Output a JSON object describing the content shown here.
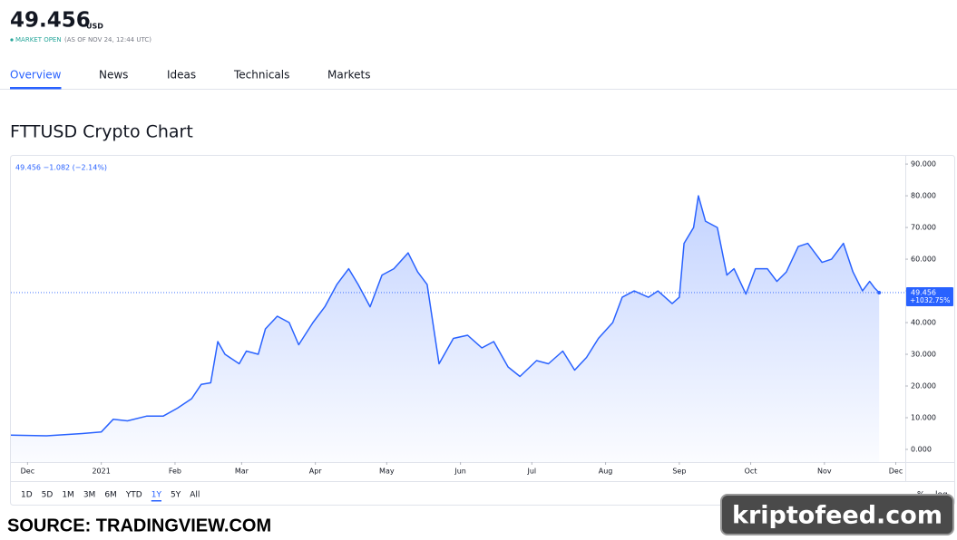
{
  "header": {
    "price": "49.456",
    "currency": "USD",
    "status": "MARKET OPEN",
    "as_of": "(AS OF NOV 24, 12:44 UTC)"
  },
  "tabs": [
    "Overview",
    "News",
    "Ideas",
    "Technicals",
    "Markets"
  ],
  "active_tab": 0,
  "section_title": "FTTUSD Crypto Chart",
  "chart_data": {
    "type": "line",
    "legend_text": "49.456 −1.082 (−2.14%)",
    "x": [
      0,
      15,
      30,
      38,
      43,
      49,
      57,
      64,
      70,
      76,
      80,
      84,
      87,
      90,
      96,
      99,
      104,
      107,
      112,
      117,
      121,
      127,
      132,
      137,
      142,
      146,
      151,
      156,
      161,
      167,
      171,
      175,
      180,
      186,
      192,
      198,
      203,
      209,
      214,
      221,
      226,
      232,
      237,
      242,
      247,
      253,
      257,
      262,
      268,
      272,
      278,
      281,
      283,
      287,
      289,
      292,
      297,
      301,
      304,
      309,
      313,
      318,
      322,
      326,
      331,
      335,
      341,
      345,
      350,
      354,
      358,
      361,
      363,
      365
    ],
    "series": [
      {
        "color": "#2962ff",
        "values": [
          4.5,
          4.3,
          5,
          5.5,
          9.5,
          9,
          10.5,
          10.5,
          13,
          16,
          20.5,
          21,
          34,
          30,
          27,
          31,
          30,
          38,
          42,
          40,
          33,
          40,
          45,
          52,
          57,
          52,
          45,
          55,
          57,
          62,
          56,
          52,
          27,
          35,
          36,
          32,
          34,
          26,
          23,
          28,
          27,
          31,
          25,
          29,
          35,
          40,
          48,
          50,
          48,
          50,
          46,
          48,
          65,
          70,
          80,
          72,
          70,
          55,
          57,
          49,
          57,
          57,
          53,
          56,
          64,
          65,
          59,
          60,
          65,
          56,
          50,
          53,
          51,
          49.456
        ]
      }
    ],
    "xlim": [
      0,
      376
    ],
    "xticks": [
      {
        "value": 7,
        "label": "Dec"
      },
      {
        "value": 38,
        "label": "2021"
      },
      {
        "value": 69,
        "label": "Feb"
      },
      {
        "value": 97,
        "label": "Mar"
      },
      {
        "value": 128,
        "label": "Apr"
      },
      {
        "value": 158,
        "label": "May"
      },
      {
        "value": 189,
        "label": "Jun"
      },
      {
        "value": 219,
        "label": "Jul"
      },
      {
        "value": 250,
        "label": "Aug"
      },
      {
        "value": 281,
        "label": "Sep"
      },
      {
        "value": 311,
        "label": "Oct"
      },
      {
        "value": 342,
        "label": "Nov"
      },
      {
        "value": 372,
        "label": "Dec"
      }
    ],
    "ylim": [
      -4,
      92.6
    ],
    "yticks": [
      {
        "value": 0,
        "label": "0.000"
      },
      {
        "value": 10,
        "label": "10.000"
      },
      {
        "value": 20,
        "label": "20.000"
      },
      {
        "value": 30,
        "label": "30.000"
      },
      {
        "value": 40,
        "label": "40.000"
      },
      {
        "value": 50,
        "label": "50.000"
      },
      {
        "value": 60,
        "label": "60.000"
      },
      {
        "value": 70,
        "label": "70.000"
      },
      {
        "value": 80,
        "label": "80.000"
      },
      {
        "value": 90,
        "label": "90.000"
      }
    ],
    "last": {
      "value": 49.456,
      "label": "49.456",
      "change": "+1032.75%"
    }
  },
  "ranges": [
    "1D",
    "5D",
    "1M",
    "3M",
    "6M",
    "YTD",
    "1Y",
    "5Y",
    "All"
  ],
  "active_range": 6,
  "scale_options": [
    "%",
    "log"
  ],
  "source": "SOURCE: TRADINGVIEW.COM",
  "watermark": "kriptofeed.com"
}
